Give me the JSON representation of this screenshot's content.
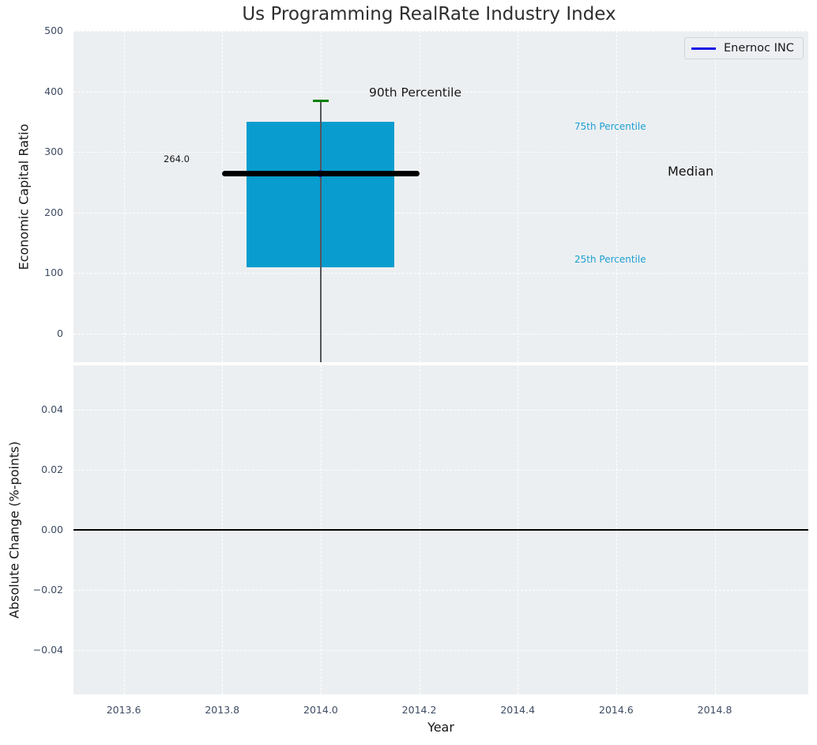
{
  "figure": {
    "title": "Us Programming RealRate Industry Index"
  },
  "top_plot": {
    "ylabel": "Economic Capital Ratio",
    "ytick_labels": [
      "500",
      "400",
      "300",
      "200",
      "100",
      "0"
    ],
    "annotations": {
      "p90_label": "90th Percentile",
      "p75_label": "75th Percentile",
      "median_label": "Median",
      "p25_label": "25th Percentile",
      "median_value_label": "264.0"
    },
    "legend": {
      "label": "Enernoc INC"
    }
  },
  "bottom_plot": {
    "ylabel": "Absolute Change (%-points)",
    "ytick_labels": [
      "0.04",
      "0.02",
      "0.00",
      "−0.02",
      "−0.04"
    ]
  },
  "x_axis": {
    "label": "Year",
    "tick_labels": [
      "2013.6",
      "2013.8",
      "2014.0",
      "2014.2",
      "2014.4",
      "2014.6",
      "2014.8"
    ]
  },
  "colors": {
    "box_fill": "#089dce",
    "percentile_text": "#1d9fd2",
    "p90_cap_green": "#008000",
    "series_blue": "#1414e6",
    "tick_text": "#3e4c63",
    "axes_background": "#eceff1"
  },
  "chart_data": [
    {
      "type": "box",
      "title": "Us Programming RealRate Industry Index",
      "ylabel": "Economic Capital Ratio",
      "series": "Enernoc INC",
      "x": 2014.0,
      "stats": {
        "p90": 385,
        "q3": 350,
        "median": 264.0,
        "q1": 110
      },
      "whisker_low_clipped_below_axis": true,
      "box_width": 0.3,
      "median_line_width": 0.4,
      "yticks": [
        500,
        400,
        300,
        200,
        100,
        0
      ],
      "xticks": [
        2013.6,
        2013.8,
        2014.0,
        2014.2,
        2014.4,
        2014.6,
        2014.8
      ],
      "ylim": [
        -47,
        500
      ],
      "xlim": [
        2013.5,
        2015.0
      ],
      "grid": "white-dashed",
      "legend_position": "upper-right",
      "annotations": [
        "90th Percentile",
        "75th Percentile",
        "Median",
        "25th Percentile",
        "264.0"
      ]
    },
    {
      "type": "line",
      "ylabel": "Absolute Change (%-points)",
      "xlabel": "Year",
      "x": [],
      "values": [],
      "zero_line": 0.0,
      "yticks": [
        0.04,
        0.02,
        0.0,
        -0.02,
        -0.04
      ],
      "xticks": [
        2013.6,
        2013.8,
        2014.0,
        2014.2,
        2014.4,
        2014.6,
        2014.8
      ],
      "ylim": [
        -0.055,
        0.055
      ],
      "xlim": [
        2013.5,
        2015.0
      ],
      "grid": "white-dashed"
    }
  ]
}
